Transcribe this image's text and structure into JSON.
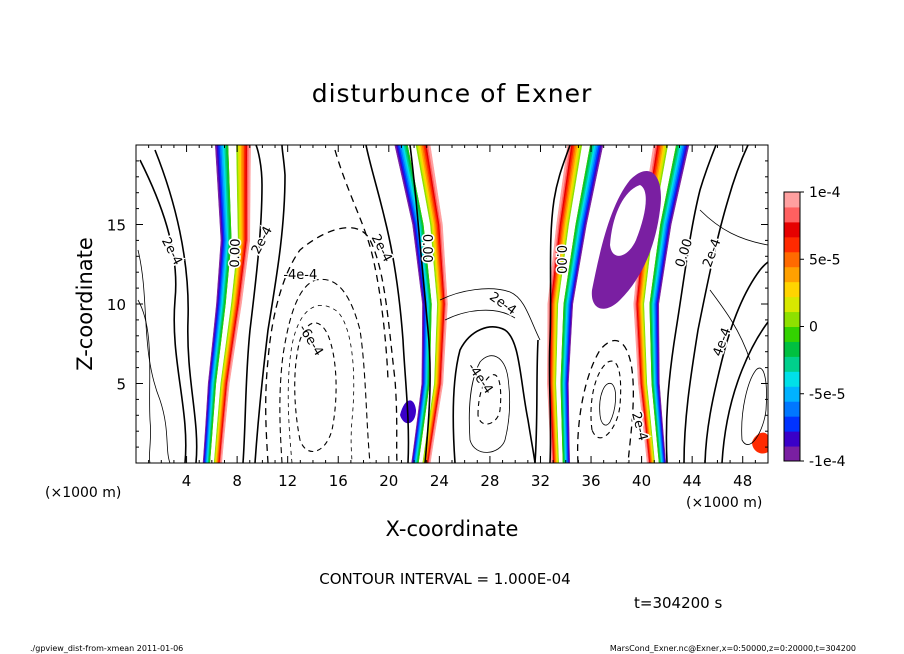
{
  "chart_data": {
    "type": "heatmap",
    "title": "disturbunce of Exner",
    "xlabel": "X-coordinate",
    "ylabel": "Z-coordinate",
    "x_unit": "(×1000 m)",
    "x_unit_right": "(×1000 m)",
    "xlim": [
      0,
      50
    ],
    "ylim": [
      0,
      20
    ],
    "x_ticks": [
      4,
      8,
      12,
      16,
      20,
      24,
      28,
      32,
      36,
      40,
      44,
      48
    ],
    "y_ticks": [
      5,
      10,
      15
    ],
    "colorbar": {
      "range": [
        -0.0001,
        0.0001
      ],
      "labels": [
        {
          "value": 0.0001,
          "text": "1e-4"
        },
        {
          "value": 5e-05,
          "text": "5e-5"
        },
        {
          "value": 0,
          "text": "0"
        },
        {
          "value": -5e-05,
          "text": "-5e-5"
        },
        {
          "value": -0.0001,
          "text": "-1e-4"
        }
      ],
      "colors": [
        "#7a1fa2",
        "#3a00c8",
        "#0033ff",
        "#0077ff",
        "#00b2ff",
        "#00e0e8",
        "#00d08c",
        "#00c040",
        "#33d200",
        "#8ee000",
        "#d8e800",
        "#ffd400",
        "#ffa000",
        "#ff6a00",
        "#ff2a00",
        "#e60000",
        "#ff6060",
        "#ffa0a0"
      ]
    },
    "bands": [
      {
        "zero_x": [
          [
            6.0,
            0
          ],
          [
            6.5,
            5
          ],
          [
            7.3,
            10
          ],
          [
            7.8,
            14
          ],
          [
            7.6,
            20
          ]
        ],
        "orient": "warm-right"
      },
      {
        "zero_x": [
          [
            22.5,
            0
          ],
          [
            23.4,
            5
          ],
          [
            23.6,
            10
          ],
          [
            23.0,
            15
          ],
          [
            21.8,
            20
          ]
        ],
        "orient": "warm-right"
      },
      {
        "zero_x": [
          [
            33.6,
            0
          ],
          [
            33.4,
            5
          ],
          [
            33.6,
            10
          ],
          [
            34.5,
            15
          ],
          [
            35.6,
            20
          ]
        ],
        "orient": "warm-left"
      },
      {
        "zero_x": [
          [
            41.2,
            0
          ],
          [
            40.6,
            5
          ],
          [
            40.4,
            10
          ],
          [
            41.2,
            15
          ],
          [
            42.4,
            20
          ]
        ],
        "orient": "warm-left"
      }
    ],
    "contour_labels": [
      {
        "x": 7.9,
        "y": 13.2,
        "text": "0.00",
        "rot": -88
      },
      {
        "x": 10.0,
        "y": 14.0,
        "text": "2e-4",
        "rot": -62
      },
      {
        "x": 2.8,
        "y": 13.3,
        "text": "2e-4",
        "rot": 62
      },
      {
        "x": 13.0,
        "y": 11.8,
        "text": "-4e-4",
        "rot": 0
      },
      {
        "x": 13.8,
        "y": 7.7,
        "text": "-6e-4",
        "rot": 58
      },
      {
        "x": 19.4,
        "y": 13.5,
        "text": "2e-4",
        "rot": 62
      },
      {
        "x": 23.0,
        "y": 13.5,
        "text": "0.00",
        "rot": 90
      },
      {
        "x": 29.0,
        "y": 10.0,
        "text": "2e-4",
        "rot": 35
      },
      {
        "x": 27.2,
        "y": 5.3,
        "text": "-4e-4",
        "rot": 55
      },
      {
        "x": 33.6,
        "y": 12.8,
        "text": "0.00",
        "rot": 90
      },
      {
        "x": 39.8,
        "y": 2.3,
        "text": "2e-4",
        "rot": 75
      },
      {
        "x": 43.4,
        "y": 13.2,
        "text": "0.00",
        "rot": -72
      },
      {
        "x": 45.6,
        "y": 13.2,
        "text": "2e-4",
        "rot": -70
      },
      {
        "x": 46.4,
        "y": 7.6,
        "text": "4e-4",
        "rot": -70
      }
    ]
  },
  "contour_interval": "CONTOUR INTERVAL = 1.000E-04",
  "time_label": "t=304200 s",
  "footer": {
    "left": "./gpview_dist-from-xmean  2011-01-06",
    "right": "MarsCond_Exner.nc@Exner,x=0:50000,z=0:20000,t=304200"
  }
}
